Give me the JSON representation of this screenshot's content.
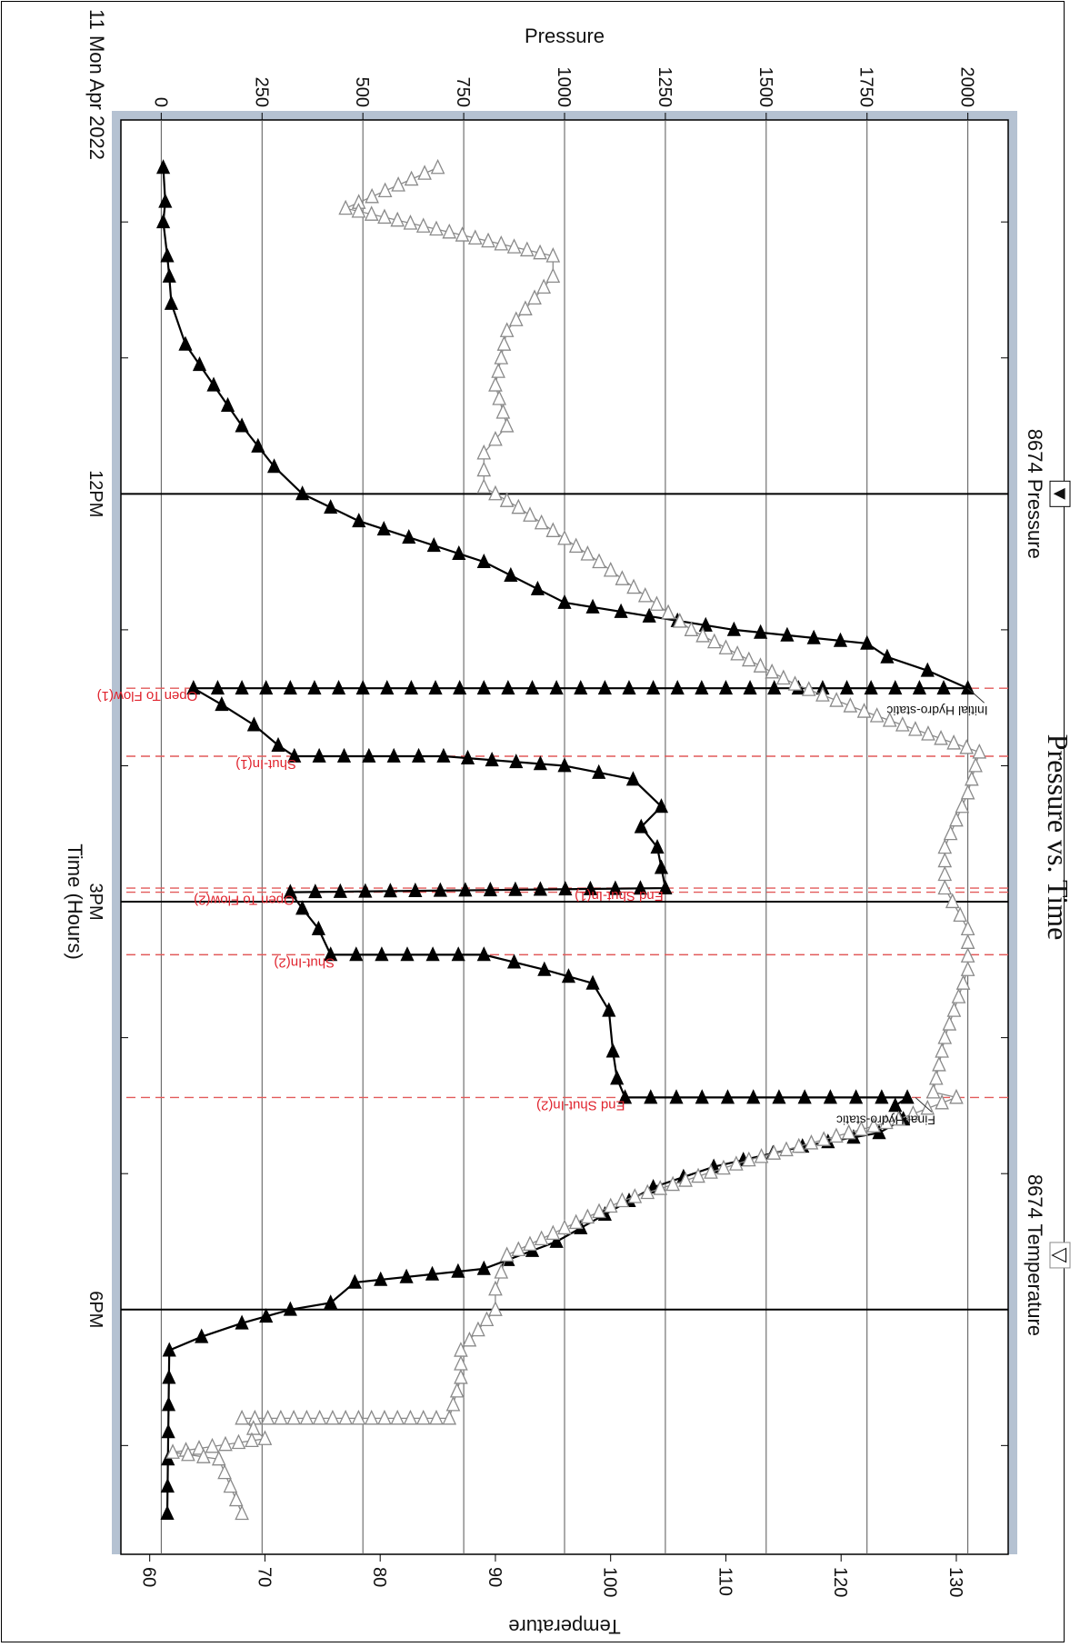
{
  "chart_data": {
    "type": "line",
    "title": "Pressure vs. Time",
    "date_label": "11 Mon Apr 2022",
    "x_axis": {
      "label": "Time (Hours)",
      "range_hours": [
        9.25,
        19.8
      ],
      "major_ticks": [
        {
          "hour": 12,
          "label": "12PM"
        },
        {
          "hour": 15,
          "label": "3PM"
        },
        {
          "hour": 18,
          "label": "6PM"
        }
      ],
      "minor_ticks": [
        10,
        11,
        13,
        14,
        16,
        17,
        19
      ]
    },
    "y_axis_left": {
      "label": "Pressure",
      "range": [
        -100,
        2100
      ],
      "ticks": [
        0,
        250,
        500,
        750,
        1000,
        1250,
        1500,
        1750,
        2000
      ],
      "grid": true
    },
    "y_axis_right": {
      "label": "Temperature",
      "range": [
        57.5,
        134.5
      ],
      "ticks": [
        60,
        70,
        80,
        90,
        100,
        110,
        120,
        130
      ]
    },
    "legend": {
      "pressure_label": "8674 Pressure",
      "temperature_label": "8674 Temperature",
      "pressure_marker": "▼",
      "temperature_marker": "▽"
    },
    "events": [
      {
        "name": "Open To Flow(1)",
        "hour": 13.43,
        "kind": "flow"
      },
      {
        "name": "Shut-In(1)",
        "hour": 13.93,
        "kind": "shut"
      },
      {
        "name": "End Shut-In(1)",
        "hour": 14.9,
        "kind": "flow"
      },
      {
        "name": "Open To Flow(2)",
        "hour": 14.93,
        "kind": "flow"
      },
      {
        "name": "Shut-In(2)",
        "hour": 15.39,
        "kind": "shut"
      },
      {
        "name": "End Shut-In(2)",
        "hour": 16.44,
        "kind": "shut"
      }
    ],
    "annotations": [
      {
        "text": "Initial Hydro-static",
        "hour": 13.43,
        "value": 2000
      },
      {
        "text": "Final Hydro-static",
        "hour": 16.44,
        "value": 1870
      }
    ],
    "series": [
      {
        "name": "8674 Pressure",
        "color": "#000000",
        "marker": "filled-triangle",
        "points": [
          [
            9.6,
            5
          ],
          [
            9.85,
            10
          ],
          [
            10.0,
            5
          ],
          [
            10.25,
            15
          ],
          [
            10.4,
            20
          ],
          [
            10.6,
            25
          ],
          [
            10.9,
            60
          ],
          [
            11.2,
            130
          ],
          [
            11.5,
            200
          ],
          [
            11.8,
            280
          ],
          [
            12.0,
            350
          ],
          [
            12.2,
            490
          ],
          [
            12.5,
            800
          ],
          [
            12.8,
            1000
          ],
          [
            12.9,
            1210
          ],
          [
            13.0,
            1420
          ],
          [
            13.1,
            1750
          ],
          [
            13.2,
            1800
          ],
          [
            13.3,
            1900
          ],
          [
            13.43,
            2000
          ],
          [
            13.43,
            80
          ],
          [
            13.55,
            150
          ],
          [
            13.7,
            230
          ],
          [
            13.85,
            290
          ],
          [
            13.93,
            330
          ],
          [
            13.93,
            700
          ],
          [
            14.0,
            1000
          ],
          [
            14.1,
            1170
          ],
          [
            14.3,
            1240
          ],
          [
            14.45,
            1190
          ],
          [
            14.6,
            1230
          ],
          [
            14.75,
            1240
          ],
          [
            14.9,
            1250
          ],
          [
            14.93,
            320
          ],
          [
            15.05,
            350
          ],
          [
            15.2,
            390
          ],
          [
            15.39,
            420
          ],
          [
            15.39,
            800
          ],
          [
            15.5,
            950
          ],
          [
            15.6,
            1070
          ],
          [
            15.8,
            1110
          ],
          [
            16.1,
            1120
          ],
          [
            16.3,
            1130
          ],
          [
            16.44,
            1150
          ],
          [
            16.44,
            1850
          ],
          [
            16.5,
            1820
          ],
          [
            16.6,
            1840
          ],
          [
            16.7,
            1780
          ],
          [
            16.8,
            1590
          ],
          [
            16.95,
            1370
          ],
          [
            17.1,
            1220
          ],
          [
            17.3,
            1100
          ],
          [
            17.5,
            980
          ],
          [
            17.7,
            800
          ],
          [
            17.8,
            480
          ],
          [
            17.95,
            420
          ],
          [
            18.0,
            320
          ],
          [
            18.1,
            200
          ],
          [
            18.2,
            100
          ],
          [
            18.3,
            20
          ],
          [
            19.5,
            15
          ]
        ]
      },
      {
        "name": "8674 Temperature",
        "color": "#8a8a8a",
        "marker": "open-triangle",
        "points": [
          [
            9.6,
            85
          ],
          [
            9.9,
            77
          ],
          [
            10.25,
            95
          ],
          [
            10.4,
            95
          ],
          [
            10.8,
            91
          ],
          [
            11.2,
            90
          ],
          [
            11.5,
            91
          ],
          [
            11.7,
            89
          ],
          [
            11.95,
            89
          ],
          [
            12.1,
            92
          ],
          [
            12.5,
            99
          ],
          [
            13.0,
            107
          ],
          [
            13.4,
            116
          ],
          [
            13.6,
            122
          ],
          [
            13.9,
            132
          ],
          [
            14.2,
            131
          ],
          [
            14.6,
            129
          ],
          [
            14.9,
            129
          ],
          [
            15.2,
            131
          ],
          [
            15.5,
            131
          ],
          [
            16.0,
            129
          ],
          [
            16.4,
            128
          ],
          [
            16.44,
            130
          ],
          [
            16.6,
            125
          ],
          [
            16.9,
            112
          ],
          [
            17.2,
            101
          ],
          [
            17.6,
            91
          ],
          [
            17.85,
            90
          ],
          [
            18.0,
            90
          ],
          [
            18.3,
            87
          ],
          [
            18.5,
            87
          ],
          [
            18.8,
            86
          ],
          [
            18.8,
            68
          ],
          [
            18.95,
            70
          ],
          [
            19.05,
            62
          ],
          [
            19.1,
            66
          ],
          [
            19.3,
            67
          ],
          [
            19.5,
            68
          ]
        ]
      }
    ]
  }
}
